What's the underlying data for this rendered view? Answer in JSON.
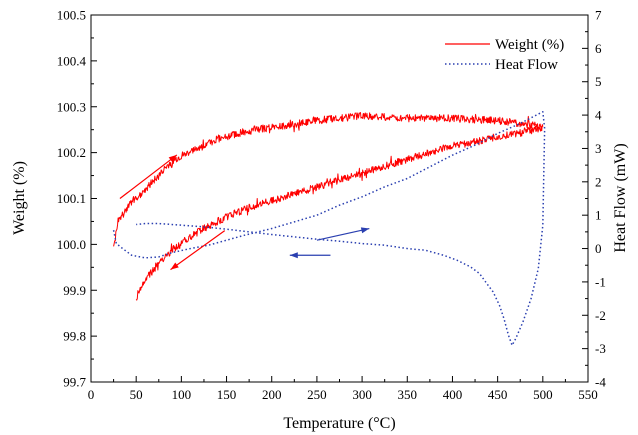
{
  "chart_data": {
    "type": "line",
    "xlabel": "Temperature (°C)",
    "ylabel_left": "Weight (%)",
    "ylabel_right": "Heat Flow (mW)",
    "xlim": [
      0,
      550
    ],
    "ylim_left": [
      99.7,
      100.5
    ],
    "ylim_right": [
      -4,
      7
    ],
    "x_ticks": [
      0,
      50,
      100,
      150,
      200,
      250,
      300,
      350,
      400,
      450,
      500,
      550
    ],
    "y_left_ticks": [
      "99.7",
      "99.8",
      "99.9",
      "100.0",
      "100.1",
      "100.2",
      "100.3",
      "100.4",
      "100.5"
    ],
    "y_right_ticks": [
      -4,
      -3,
      -2,
      -1,
      0,
      1,
      2,
      3,
      4,
      5,
      6,
      7
    ],
    "grid": false,
    "legend_position": "top-right",
    "series": [
      {
        "name": "Weight (%)",
        "axis": "left",
        "color": "#ff0000",
        "style": "solid",
        "noise": 0.008,
        "points": [
          [
            25,
            100.0
          ],
          [
            30,
            100.05
          ],
          [
            40,
            100.08
          ],
          [
            50,
            100.1
          ],
          [
            60,
            100.12
          ],
          [
            70,
            100.14
          ],
          [
            80,
            100.16
          ],
          [
            90,
            100.18
          ],
          [
            100,
            100.19
          ],
          [
            120,
            100.21
          ],
          [
            140,
            100.23
          ],
          [
            160,
            100.24
          ],
          [
            180,
            100.25
          ],
          [
            200,
            100.255
          ],
          [
            220,
            100.26
          ],
          [
            250,
            100.27
          ],
          [
            275,
            100.275
          ],
          [
            300,
            100.28
          ],
          [
            325,
            100.278
          ],
          [
            350,
            100.275
          ],
          [
            375,
            100.275
          ],
          [
            400,
            100.275
          ],
          [
            425,
            100.272
          ],
          [
            450,
            100.27
          ],
          [
            470,
            100.265
          ],
          [
            490,
            100.26
          ],
          [
            500,
            100.255
          ],
          [
            490,
            100.25
          ],
          [
            470,
            100.24
          ],
          [
            450,
            100.235
          ],
          [
            430,
            100.225
          ],
          [
            400,
            100.215
          ],
          [
            375,
            100.2
          ],
          [
            350,
            100.185
          ],
          [
            325,
            100.17
          ],
          [
            300,
            100.155
          ],
          [
            275,
            100.14
          ],
          [
            250,
            100.125
          ],
          [
            225,
            100.11
          ],
          [
            200,
            100.095
          ],
          [
            175,
            100.08
          ],
          [
            150,
            100.06
          ],
          [
            125,
            100.035
          ],
          [
            100,
            100.005
          ],
          [
            80,
            99.97
          ],
          [
            65,
            99.935
          ],
          [
            55,
            99.905
          ],
          [
            50,
            99.88
          ]
        ]
      },
      {
        "name": "Heat Flow",
        "axis": "right",
        "color": "#2a3fb0",
        "style": "dotted",
        "noise": 0,
        "points": [
          [
            25,
            0.55
          ],
          [
            28,
            0.15
          ],
          [
            35,
            0.0
          ],
          [
            45,
            -0.2
          ],
          [
            60,
            -0.28
          ],
          [
            75,
            -0.25
          ],
          [
            90,
            -0.12
          ],
          [
            110,
            0.0
          ],
          [
            130,
            0.1
          ],
          [
            150,
            0.25
          ],
          [
            170,
            0.4
          ],
          [
            200,
            0.6
          ],
          [
            225,
            0.8
          ],
          [
            250,
            1.0
          ],
          [
            275,
            1.3
          ],
          [
            300,
            1.55
          ],
          [
            325,
            1.85
          ],
          [
            350,
            2.1
          ],
          [
            375,
            2.45
          ],
          [
            400,
            2.8
          ],
          [
            425,
            3.1
          ],
          [
            450,
            3.45
          ],
          [
            475,
            3.75
          ],
          [
            500,
            4.1
          ],
          [
            502,
            3.6
          ],
          [
            500,
            0.7
          ],
          [
            495,
            -0.6
          ],
          [
            487,
            -1.5
          ],
          [
            478,
            -2.2
          ],
          [
            470,
            -2.7
          ],
          [
            466,
            -2.9
          ],
          [
            462,
            -2.6
          ],
          [
            457,
            -2.1
          ],
          [
            452,
            -1.7
          ],
          [
            445,
            -1.3
          ],
          [
            438,
            -1.05
          ],
          [
            430,
            -0.75
          ],
          [
            420,
            -0.55
          ],
          [
            405,
            -0.35
          ],
          [
            390,
            -0.2
          ],
          [
            370,
            -0.05
          ],
          [
            350,
            0.0
          ],
          [
            325,
            0.1
          ],
          [
            300,
            0.15
          ],
          [
            275,
            0.22
          ],
          [
            250,
            0.28
          ],
          [
            225,
            0.35
          ],
          [
            200,
            0.42
          ],
          [
            175,
            0.5
          ],
          [
            150,
            0.58
          ],
          [
            125,
            0.65
          ],
          [
            100,
            0.7
          ],
          [
            75,
            0.75
          ],
          [
            60,
            0.75
          ],
          [
            50,
            0.72
          ]
        ]
      }
    ],
    "annotations": [
      {
        "type": "arrow",
        "color": "#ff0000",
        "axis": "left",
        "from": [
          32,
          100.1
        ],
        "to": [
          95,
          100.195
        ]
      },
      {
        "type": "arrow",
        "color": "#ff0000",
        "axis": "left",
        "from": [
          148,
          100.03
        ],
        "to": [
          88,
          99.945
        ]
      },
      {
        "type": "arrow",
        "color": "#2a3fb0",
        "axis": "right",
        "from": [
          250,
          0.25
        ],
        "to": [
          308,
          0.6
        ]
      },
      {
        "type": "arrow",
        "color": "#2a3fb0",
        "axis": "right",
        "from": [
          265,
          -0.2
        ],
        "to": [
          220,
          -0.2
        ]
      }
    ]
  }
}
